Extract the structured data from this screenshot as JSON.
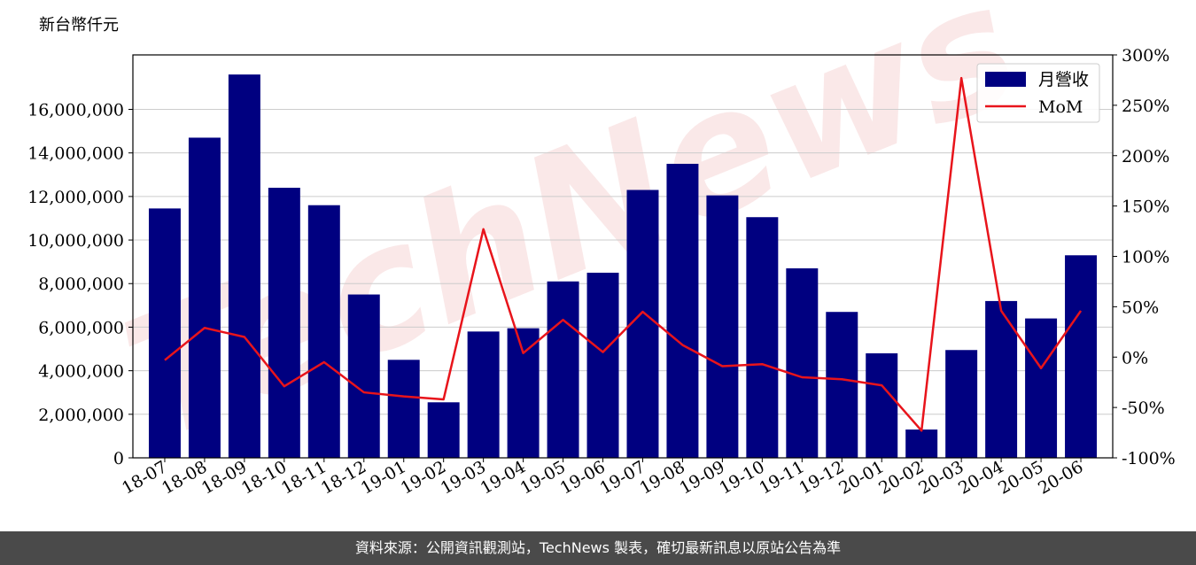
{
  "unit_label": "新台幣仟元",
  "watermark": "TechNews",
  "footer_text": "資料來源：公開資訊觀測站，TechNews 製表，確切最新訊息以原站公告為準",
  "colors": {
    "bar": "#000080",
    "line": "#e8141b",
    "grid": "#cccccc",
    "footer_bg": "#4a4a4a",
    "watermark": "#f5d5d5"
  },
  "chart_data": {
    "type": "bar",
    "categories": [
      "18-07",
      "18-08",
      "18-09",
      "18-10",
      "18-11",
      "18-12",
      "19-01",
      "19-02",
      "19-03",
      "19-04",
      "19-05",
      "19-06",
      "19-07",
      "19-08",
      "19-09",
      "19-10",
      "19-11",
      "19-12",
      "20-01",
      "20-02",
      "20-03",
      "20-04",
      "20-05",
      "20-06"
    ],
    "series": [
      {
        "name": "月營收",
        "type": "bar",
        "axis": "left",
        "values": [
          11450000,
          14700000,
          17600000,
          12400000,
          11600000,
          7500000,
          4500000,
          2550000,
          5800000,
          5950000,
          8100000,
          8500000,
          12300000,
          13500000,
          12050000,
          11050000,
          8700000,
          6700000,
          4800000,
          1300000,
          4950000,
          7200000,
          6400000,
          9300000
        ]
      },
      {
        "name": "MoM",
        "type": "line",
        "axis": "right",
        "values": [
          -3,
          29,
          20,
          -29,
          -5,
          -35,
          -39,
          -42,
          127,
          4,
          37,
          5,
          45,
          12,
          -9,
          -7,
          -20,
          -22,
          -28,
          -73,
          277,
          46,
          -11,
          46
        ]
      }
    ],
    "y_left": {
      "lim": [
        0,
        18500000
      ],
      "ticks": [
        0,
        2000000,
        4000000,
        6000000,
        8000000,
        10000000,
        12000000,
        14000000,
        16000000
      ],
      "tick_labels": [
        "0",
        "2,000,000",
        "4,000,000",
        "6,000,000",
        "8,000,000",
        "10,000,000",
        "12,000,000",
        "14,000,000",
        "16,000,000"
      ]
    },
    "y_right": {
      "lim": [
        -100,
        300
      ],
      "ticks": [
        -100,
        -50,
        0,
        50,
        100,
        150,
        200,
        250,
        300
      ],
      "tick_labels": [
        "-100%",
        "-50%",
        "0%",
        "50%",
        "100%",
        "150%",
        "200%",
        "250%",
        "300%"
      ]
    },
    "grid": true,
    "legend_position": "top-right"
  }
}
